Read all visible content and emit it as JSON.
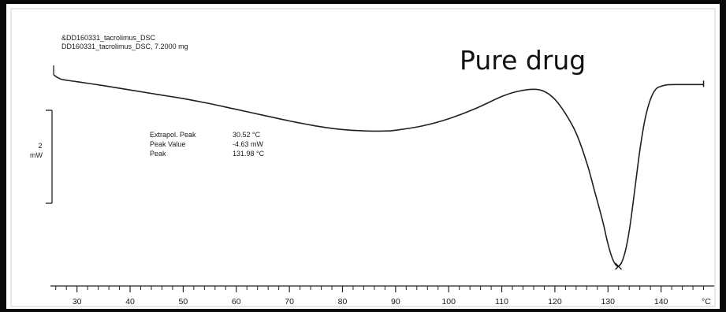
{
  "colors": {
    "frame": "#0a0a0a",
    "curve": "#202020",
    "background": "#ffffff"
  },
  "chart_data": {
    "type": "line",
    "title": "Pure drug",
    "header_lines": [
      "&DD160331_tacrolimus_DSC",
      "DD160331_tacrolimus_DSC, 7.2000 mg"
    ],
    "xlabel": "°C",
    "xlim": [
      25,
      150
    ],
    "x_ticks": [
      "30",
      "40",
      "50",
      "60",
      "70",
      "80",
      "90",
      "100",
      "110",
      "120",
      "130",
      "140"
    ],
    "scale_bar": {
      "value": "2",
      "unit": "mW"
    },
    "annotations": [
      {
        "label": "Extrapol. Peak",
        "value": "30.52 °C"
      },
      {
        "label": "Peak Value",
        "value": "-4.63 mW"
      },
      {
        "label": "Peak",
        "value": "131.98 °C"
      }
    ],
    "series": [
      {
        "x": [
          25.6,
          27,
          30,
          35,
          40,
          45,
          50,
          55,
          60,
          65,
          70,
          75,
          80,
          85,
          88,
          90,
          95,
          100,
          105,
          110,
          113,
          116,
          118,
          120,
          122,
          124,
          126,
          127.5,
          129,
          130,
          131,
          131.98,
          133,
          134,
          135,
          136,
          137,
          138,
          139,
          140,
          141,
          143,
          145,
          148
        ],
        "y": [
          0.0,
          -0.6,
          -0.95,
          -1.5,
          -2.1,
          -2.7,
          -3.3,
          -4.0,
          -4.8,
          -5.6,
          -6.4,
          -7.1,
          -7.6,
          -7.8,
          -7.8,
          -7.7,
          -7.1,
          -6.1,
          -4.7,
          -3.0,
          -2.3,
          -2.0,
          -2.3,
          -3.4,
          -5.4,
          -8.1,
          -12.2,
          -16.2,
          -20.3,
          -23.5,
          -25.8,
          -26.6,
          -25.2,
          -21.7,
          -16.2,
          -10.5,
          -6.1,
          -3.4,
          -2.0,
          -1.6,
          -1.4,
          -1.35,
          -1.35,
          -1.35
        ]
      }
    ],
    "peak_marker": {
      "x": 131.98,
      "y": -26.6
    }
  }
}
